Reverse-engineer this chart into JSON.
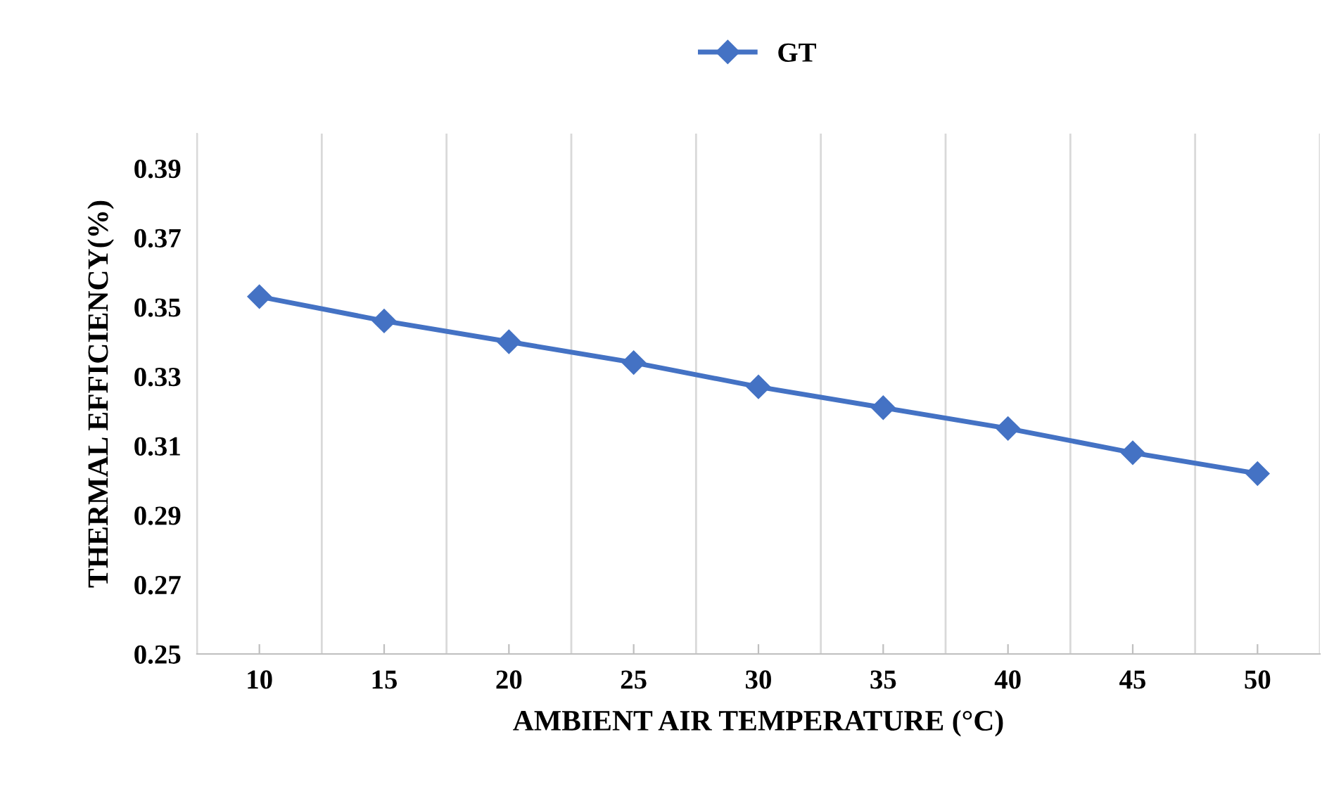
{
  "chart_data": {
    "type": "line",
    "xlabel": "AMBIENT AIR TEMPERATURE (°C)",
    "ylabel": "THERMAL EFFICIENCY(%)",
    "categories": [
      "10",
      "15",
      "20",
      "25",
      "30",
      "35",
      "40",
      "45",
      "50"
    ],
    "series": [
      {
        "name": "GT",
        "color": "#4472c4",
        "values": [
          0.353,
          0.346,
          0.34,
          0.334,
          0.327,
          0.321,
          0.315,
          0.308,
          0.302
        ]
      }
    ],
    "ylim": [
      0.25,
      0.4
    ],
    "yticks": [
      0.25,
      0.27,
      0.29,
      0.31,
      0.33,
      0.35,
      0.37,
      0.39
    ],
    "grid": "x",
    "legend": "top",
    "marker": "diamond",
    "line_style": "solid"
  }
}
